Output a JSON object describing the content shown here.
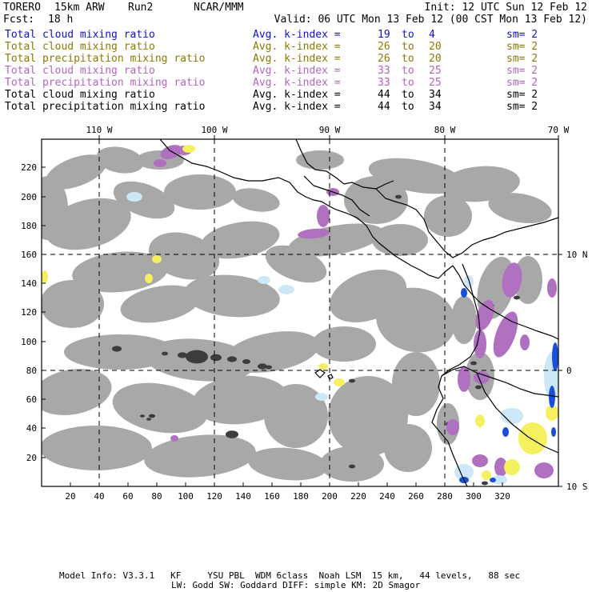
{
  "header": {
    "model": "TORERO",
    "resolution": "15km ARW",
    "run": "Run2",
    "center": "NCAR/MMM",
    "init": "Init: 12 UTC Sun 12 Feb 12",
    "fcst_label": "Fcst:",
    "fcst_value": "18 h",
    "valid": "Valid: 06 UTC Mon 13 Feb 12 (00 CST Mon 13 Feb 12)"
  },
  "fields": [
    {
      "name": "Total cloud mixing ratio",
      "kindex": "Avg. k-index =",
      "from": "19",
      "to_word": "to",
      "to": "4",
      "sm": "sm= 2",
      "color": "#1010c8"
    },
    {
      "name": "Total cloud mixing ratio",
      "kindex": "Avg. k-index =",
      "from": "26",
      "to_word": "to",
      "to": "20",
      "sm": "sm= 2",
      "color": "#8c7a00"
    },
    {
      "name": "Total precipitation mixing ratio",
      "kindex": "Avg. k-index =",
      "from": "26",
      "to_word": "to",
      "to": "20",
      "sm": "sm= 2",
      "color": "#8c7a00"
    },
    {
      "name": "Total cloud mixing ratio",
      "kindex": "Avg. k-index =",
      "from": "33",
      "to_word": "to",
      "to": "25",
      "sm": "sm= 2",
      "color": "#b464c0"
    },
    {
      "name": "Total precipitation mixing ratio",
      "kindex": "Avg. k-index =",
      "from": "33",
      "to_word": "to",
      "to": "25",
      "sm": "sm= 2",
      "color": "#b464c0"
    },
    {
      "name": "Total cloud mixing ratio",
      "kindex": "Avg. k-index =",
      "from": "44",
      "to_word": "to",
      "to": "34",
      "sm": "sm= 2",
      "color": "#000000"
    },
    {
      "name": "Total precipitation mixing ratio",
      "kindex": "Avg. k-index =",
      "from": "44",
      "to_word": "to",
      "to": "34",
      "sm": "sm= 2",
      "color": "#000000"
    }
  ],
  "map": {
    "lon_labels": [
      "110 W",
      "100 W",
      "90 W",
      "80 W",
      "70 W"
    ],
    "lat_labels": [
      "10 N",
      "0",
      "10 S"
    ],
    "x_ticks": [
      "20",
      "40",
      "60",
      "80",
      "100",
      "120",
      "140",
      "160",
      "180",
      "200",
      "220",
      "240",
      "260",
      "280",
      "300",
      "320"
    ],
    "y_ticks": [
      "20",
      "40",
      "60",
      "80",
      "100",
      "120",
      "140",
      "160",
      "180",
      "200",
      "220"
    ],
    "colors": {
      "cloud_light": "#a8a8a8",
      "cloud_dark": "#3c3c3c",
      "blue_light": "#cce8f8",
      "blue_dark": "#1a4fd8",
      "yellow": "#f4f060",
      "purple": "#b070c0"
    }
  },
  "footer": {
    "line1": "Model Info: V3.3.1   KF     YSU PBL  WDM 6class  Noah LSM  15 km,   44 levels,   88 sec",
    "line2": "LW: Godd SW: Goddard DIFF: simple KM: 2D Smagor"
  }
}
